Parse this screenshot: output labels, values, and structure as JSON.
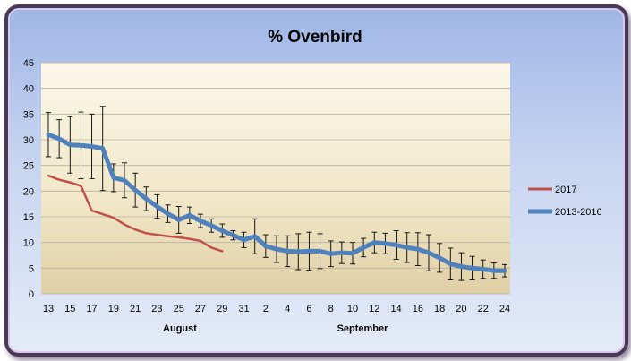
{
  "chart_data": {
    "type": "line",
    "title": "% Ovenbird",
    "xlabel": "",
    "ylabel": "",
    "ylim": [
      0,
      45
    ],
    "y_ticks": [
      0,
      5,
      10,
      15,
      20,
      25,
      30,
      35,
      40,
      45
    ],
    "x_tick_labels": [
      "13",
      "15",
      "17",
      "19",
      "21",
      "23",
      "25",
      "27",
      "29",
      "31",
      "2",
      "4",
      "6",
      "8",
      "10",
      "12",
      "14",
      "16",
      "18",
      "20",
      "22",
      "24"
    ],
    "month_labels": [
      "August",
      "September"
    ],
    "x_count": 43,
    "grid": true,
    "legend_position": "right",
    "series": [
      {
        "name": "2017",
        "color": "#c0504d",
        "start_index": 0,
        "values": [
          23,
          22.2,
          21.7,
          21,
          16.2,
          15.5,
          14.8,
          13.5,
          12.5,
          11.8,
          11.5,
          11.2,
          11,
          10.7,
          10.3,
          9,
          8.3
        ]
      },
      {
        "name": "2013-2016",
        "color": "#4f81bd",
        "start_index": 0,
        "values": [
          31,
          30.2,
          29,
          28.9,
          28.7,
          28.3,
          22.6,
          22.1,
          20.2,
          18.5,
          17,
          15.6,
          14.4,
          15.3,
          14.2,
          13.3,
          12.3,
          11.4,
          10.5,
          11.2,
          9.3,
          8.7,
          8.3,
          8.2,
          8.3,
          8.3,
          7.8,
          8,
          7.9,
          9,
          10,
          9.8,
          9.5,
          9,
          8.7,
          8,
          7,
          5.8,
          5.3,
          5,
          4.8,
          4.5,
          4.5
        ],
        "error": [
          4.3,
          3.7,
          5.5,
          6.5,
          6.3,
          8.2,
          2.7,
          3.4,
          3.3,
          2.3,
          2.3,
          1.7,
          2.6,
          1.6,
          1.3,
          1.3,
          1.3,
          0.9,
          1.5,
          3.4,
          2.2,
          2.6,
          3,
          3.5,
          3.7,
          3.4,
          2.5,
          2.1,
          2.1,
          1.8,
          2,
          2,
          2.8,
          2.9,
          3.2,
          3.5,
          2.8,
          3.1,
          2.7,
          2.3,
          1.8,
          1.5,
          1.2
        ]
      }
    ]
  }
}
